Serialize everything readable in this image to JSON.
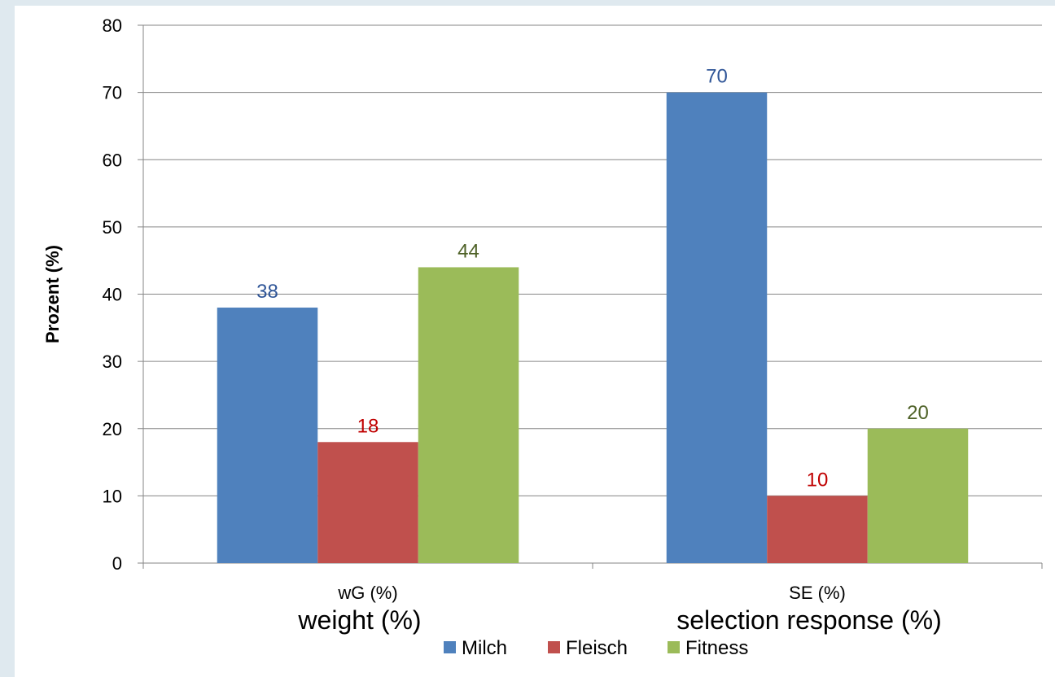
{
  "chart_data": {
    "type": "bar",
    "categories": [
      "wG (%)",
      "SE (%)"
    ],
    "category_sublabels": [
      "weight (%)",
      "selection response (%)"
    ],
    "series": [
      {
        "name": "Milch",
        "values": [
          38,
          70
        ],
        "color": "#4f81bd",
        "label_color": "#2f5597"
      },
      {
        "name": "Fleisch",
        "values": [
          18,
          10
        ],
        "color": "#c0504d",
        "label_color": "#c00000"
      },
      {
        "name": "Fitness",
        "values": [
          44,
          20
        ],
        "color": "#9bbb59",
        "label_color": "#4f6228"
      }
    ],
    "ylabel": "Prozent (%)",
    "ylim": [
      0,
      80
    ],
    "yticks": [
      "0",
      "10",
      "20",
      "30",
      "40",
      "50",
      "60",
      "70",
      "80"
    ],
    "grid": true,
    "legend": "bottom"
  }
}
